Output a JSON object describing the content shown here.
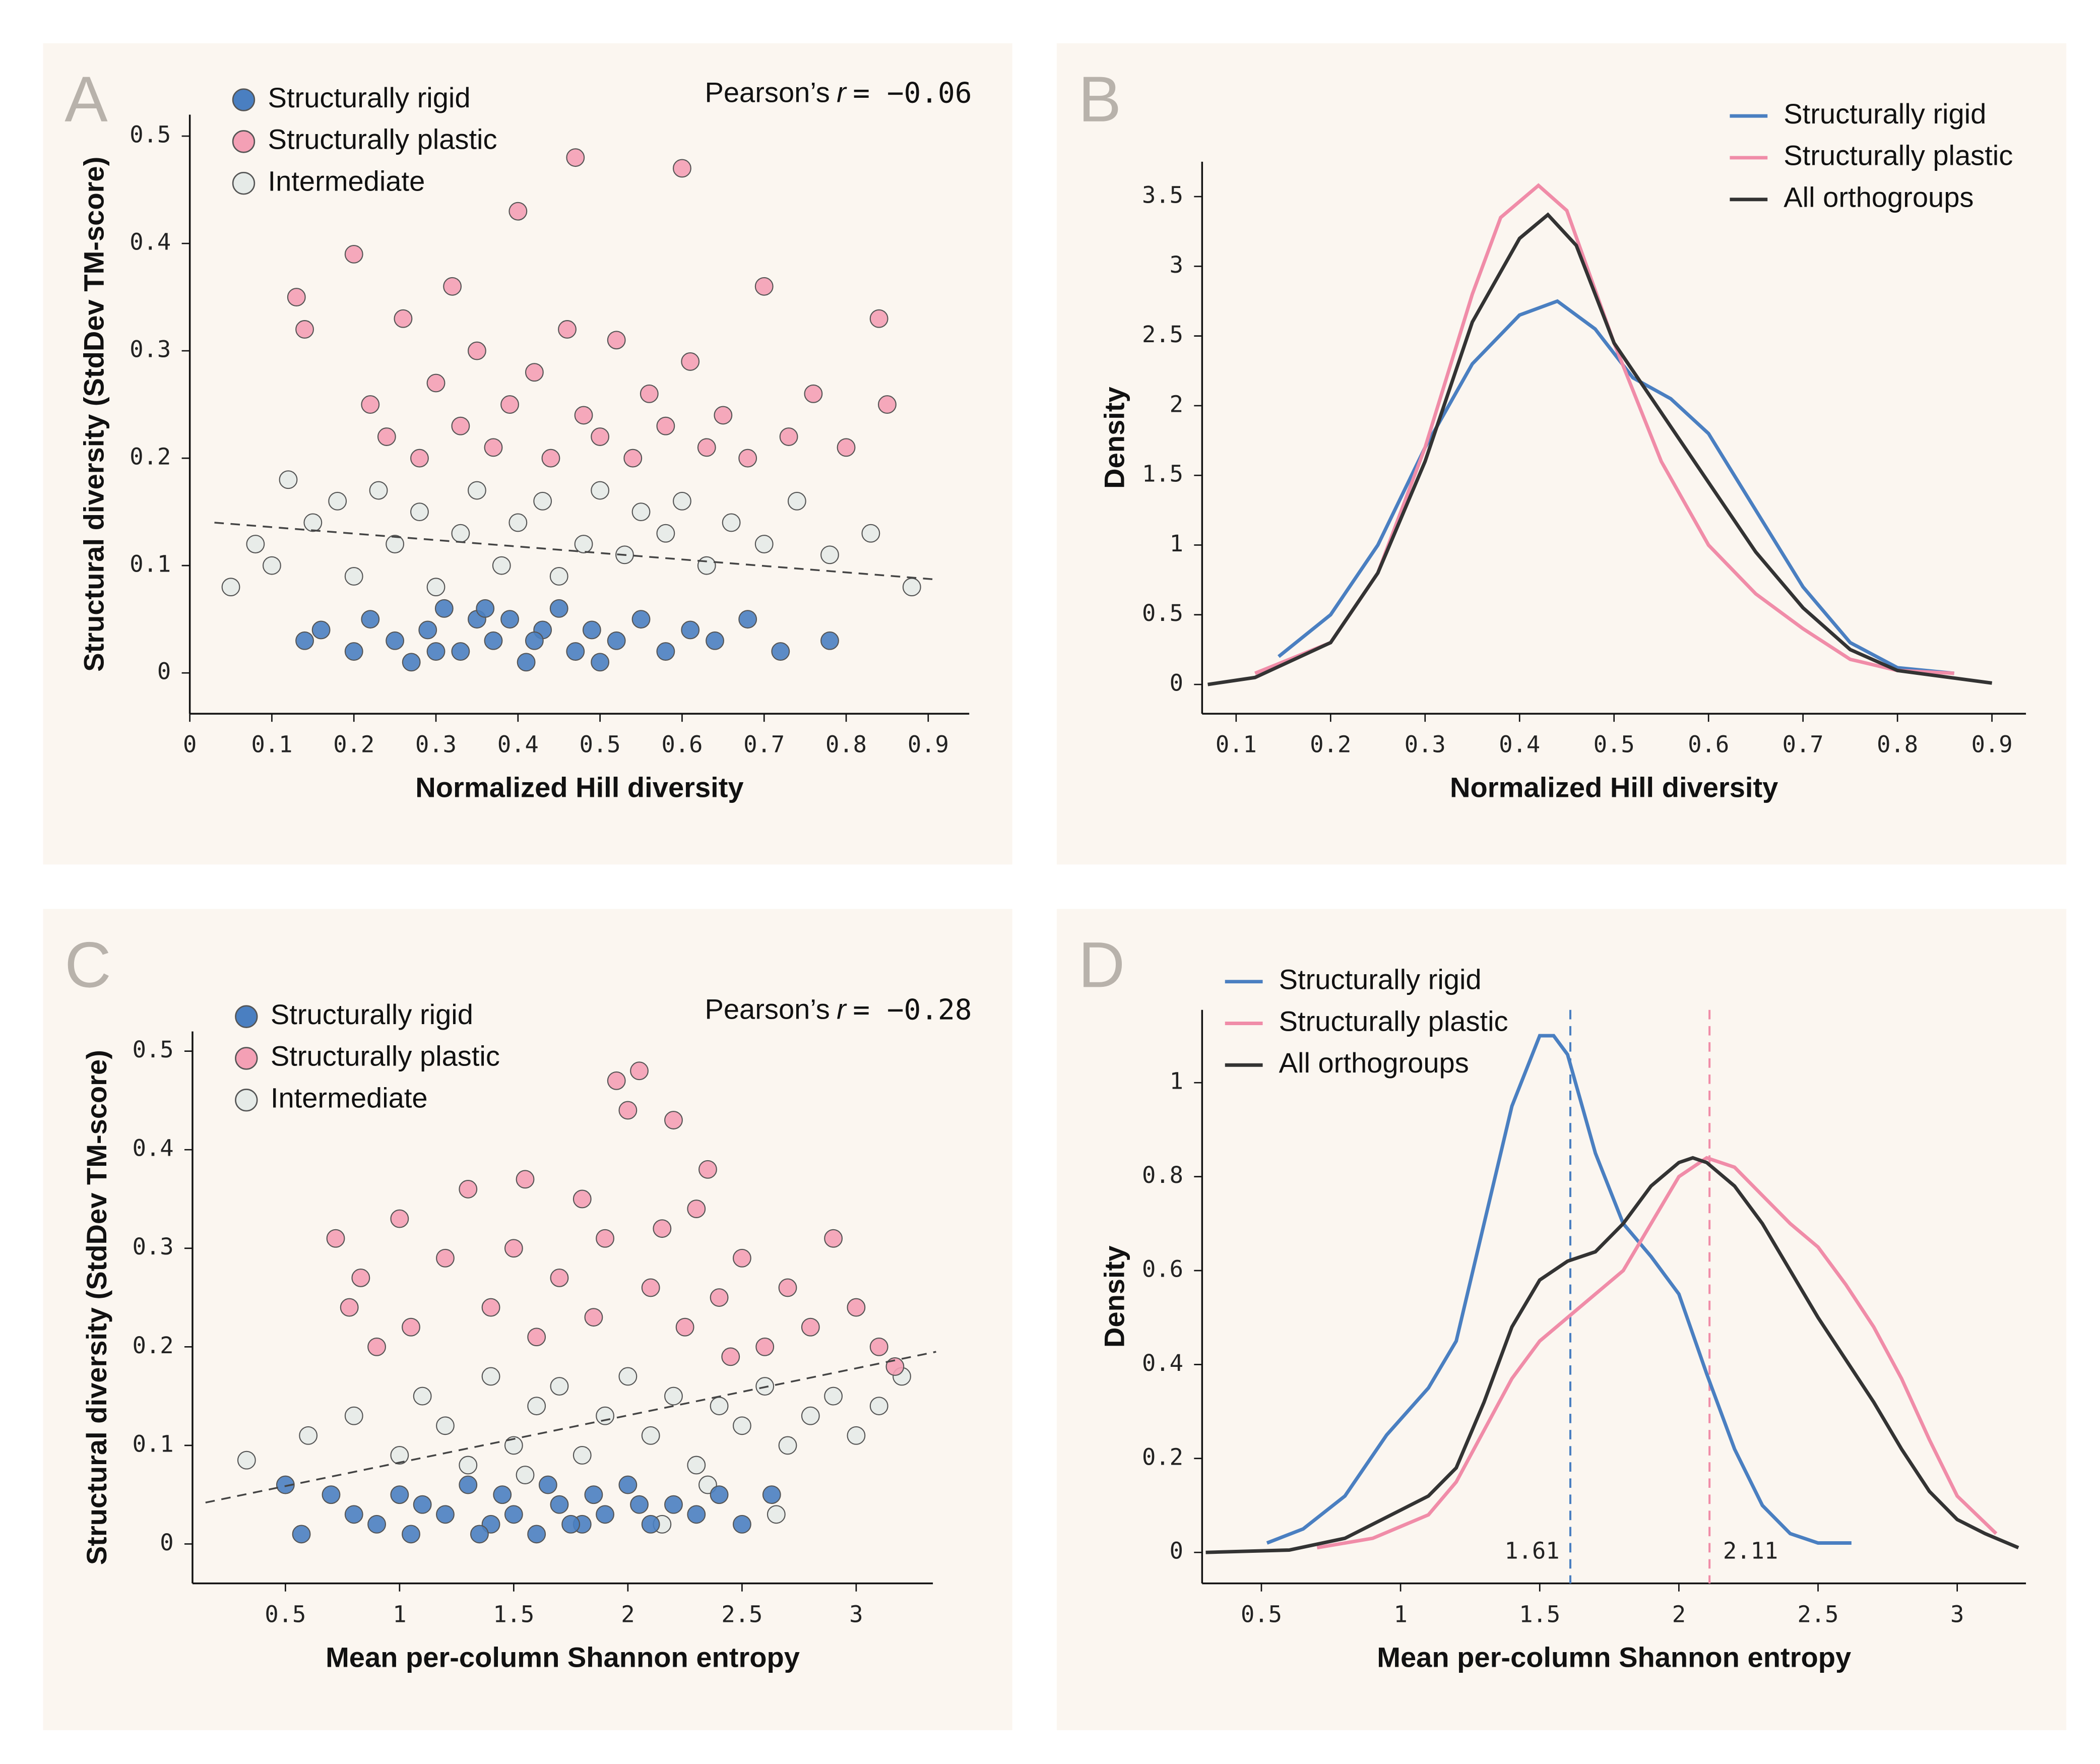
{
  "chart_data": [
    {
      "type": "scatter",
      "panel_label": "A",
      "annotation": [
        "Pearson’s",
        "r",
        "= −0.06"
      ],
      "xlabel": "Normalized Hill diversity",
      "ylabel": "Structural diversity (StdDev TM-score)",
      "xlim": [
        0,
        0.95
      ],
      "xticks": [
        0,
        0.1,
        0.2,
        0.3,
        0.4,
        0.5,
        0.6,
        0.7,
        0.8,
        0.9
      ],
      "ylim": [
        -0.038,
        0.52
      ],
      "yticks": [
        0,
        0.1,
        0.2,
        0.3,
        0.4,
        0.5
      ],
      "trendline": {
        "x": [
          0.03,
          0.91
        ],
        "y": [
          0.14,
          0.087
        ]
      },
      "series": [
        {
          "name": "Structurally rigid",
          "color": "#4a7fc1",
          "x": [
            0.14,
            0.16,
            0.2,
            0.22,
            0.25,
            0.27,
            0.29,
            0.31,
            0.33,
            0.35,
            0.37,
            0.39,
            0.41,
            0.43,
            0.45,
            0.47,
            0.49,
            0.52,
            0.55,
            0.58,
            0.61,
            0.64,
            0.68,
            0.72,
            0.78,
            0.3,
            0.36,
            0.42,
            0.5
          ],
          "y": [
            0.03,
            0.04,
            0.02,
            0.05,
            0.03,
            0.01,
            0.04,
            0.06,
            0.02,
            0.05,
            0.03,
            0.05,
            0.01,
            0.04,
            0.06,
            0.02,
            0.04,
            0.03,
            0.05,
            0.02,
            0.04,
            0.03,
            0.05,
            0.02,
            0.03,
            0.02,
            0.06,
            0.03,
            0.01
          ]
        },
        {
          "name": "Structurally plastic",
          "color": "#f4a0b5",
          "x": [
            0.13,
            0.14,
            0.2,
            0.22,
            0.24,
            0.26,
            0.28,
            0.3,
            0.32,
            0.33,
            0.35,
            0.37,
            0.39,
            0.4,
            0.42,
            0.44,
            0.46,
            0.47,
            0.48,
            0.5,
            0.52,
            0.54,
            0.56,
            0.58,
            0.6,
            0.61,
            0.63,
            0.65,
            0.68,
            0.7,
            0.73,
            0.76,
            0.8,
            0.84,
            0.85
          ],
          "y": [
            0.35,
            0.32,
            0.39,
            0.25,
            0.22,
            0.33,
            0.2,
            0.27,
            0.36,
            0.23,
            0.3,
            0.21,
            0.25,
            0.43,
            0.28,
            0.2,
            0.32,
            0.48,
            0.24,
            0.22,
            0.31,
            0.2,
            0.26,
            0.23,
            0.47,
            0.29,
            0.21,
            0.24,
            0.2,
            0.36,
            0.22,
            0.26,
            0.21,
            0.33,
            0.25
          ]
        },
        {
          "name": "Intermediate",
          "color": "#e6ebe8",
          "x": [
            0.05,
            0.08,
            0.1,
            0.12,
            0.15,
            0.18,
            0.2,
            0.23,
            0.25,
            0.28,
            0.3,
            0.33,
            0.35,
            0.38,
            0.4,
            0.43,
            0.45,
            0.48,
            0.5,
            0.53,
            0.55,
            0.58,
            0.6,
            0.63,
            0.66,
            0.7,
            0.74,
            0.78,
            0.83,
            0.88
          ],
          "y": [
            0.08,
            0.12,
            0.1,
            0.18,
            0.14,
            0.16,
            0.09,
            0.17,
            0.12,
            0.15,
            0.08,
            0.13,
            0.17,
            0.1,
            0.14,
            0.16,
            0.09,
            0.12,
            0.17,
            0.11,
            0.15,
            0.13,
            0.16,
            0.1,
            0.14,
            0.12,
            0.16,
            0.11,
            0.13,
            0.08
          ]
        }
      ]
    },
    {
      "type": "line",
      "panel_label": "B",
      "xlabel": "Normalized Hill diversity",
      "ylabel": "Density",
      "xlim": [
        0.064,
        0.936
      ],
      "xticks": [
        0.1,
        0.2,
        0.3,
        0.4,
        0.5,
        0.6,
        0.7,
        0.8,
        0.9
      ],
      "ylim": [
        -0.21,
        3.75
      ],
      "yticks": [
        0,
        0.5,
        1,
        1.5,
        2,
        2.5,
        3,
        3.5
      ],
      "series": [
        {
          "name": "Structurally rigid",
          "color": "#4a7fc1",
          "x": [
            0.145,
            0.2,
            0.25,
            0.3,
            0.35,
            0.4,
            0.44,
            0.48,
            0.52,
            0.56,
            0.6,
            0.65,
            0.7,
            0.75,
            0.8,
            0.86
          ],
          "y": [
            0.2,
            0.5,
            1.0,
            1.7,
            2.3,
            2.65,
            2.75,
            2.55,
            2.2,
            2.05,
            1.8,
            1.25,
            0.7,
            0.3,
            0.12,
            0.08
          ]
        },
        {
          "name": "Structurally plastic",
          "color": "#f08ca8",
          "x": [
            0.12,
            0.2,
            0.25,
            0.3,
            0.35,
            0.38,
            0.42,
            0.45,
            0.5,
            0.55,
            0.6,
            0.65,
            0.7,
            0.75,
            0.8,
            0.86
          ],
          "y": [
            0.08,
            0.3,
            0.8,
            1.7,
            2.8,
            3.35,
            3.58,
            3.4,
            2.45,
            1.6,
            1.0,
            0.65,
            0.4,
            0.18,
            0.1,
            0.08
          ]
        },
        {
          "name": "All orthogroups",
          "color": "#333333",
          "x": [
            0.07,
            0.12,
            0.2,
            0.25,
            0.3,
            0.35,
            0.4,
            0.43,
            0.46,
            0.5,
            0.55,
            0.6,
            0.65,
            0.7,
            0.75,
            0.8,
            0.9
          ],
          "y": [
            0.0,
            0.05,
            0.3,
            0.8,
            1.6,
            2.6,
            3.2,
            3.37,
            3.15,
            2.45,
            1.95,
            1.45,
            0.95,
            0.55,
            0.25,
            0.1,
            0.01
          ]
        }
      ]
    },
    {
      "type": "scatter",
      "panel_label": "C",
      "annotation": [
        "Pearson’s",
        "r",
        "= −0.28"
      ],
      "xlabel": "Mean per-column Shannon entropy",
      "ylabel": "Structural diversity (StdDev TM-score)",
      "xlim": [
        0.093,
        3.336
      ],
      "xticks": [
        0.5,
        1,
        1.5,
        2,
        2.5,
        3
      ],
      "ylim": [
        -0.04,
        0.52
      ],
      "yticks": [
        0,
        0.1,
        0.2,
        0.3,
        0.4,
        0.5
      ],
      "trendline": {
        "x": [
          0.15,
          3.35
        ],
        "y": [
          0.042,
          0.195
        ]
      },
      "series": [
        {
          "name": "Structurally rigid",
          "color": "#4a7fc1",
          "x": [
            0.5,
            0.57,
            0.7,
            0.8,
            0.9,
            1.0,
            1.05,
            1.1,
            1.2,
            1.3,
            1.4,
            1.45,
            1.5,
            1.6,
            1.65,
            1.7,
            1.8,
            1.85,
            1.9,
            2.0,
            2.1,
            2.2,
            2.3,
            2.4,
            2.5,
            2.63,
            1.35,
            1.75,
            2.05
          ],
          "y": [
            0.06,
            0.01,
            0.05,
            0.03,
            0.02,
            0.05,
            0.01,
            0.04,
            0.03,
            0.06,
            0.02,
            0.05,
            0.03,
            0.01,
            0.06,
            0.04,
            0.02,
            0.05,
            0.03,
            0.06,
            0.02,
            0.04,
            0.03,
            0.05,
            0.02,
            0.05,
            0.01,
            0.02,
            0.04
          ]
        },
        {
          "name": "Structurally plastic",
          "color": "#f4a0b5",
          "x": [
            0.72,
            0.78,
            0.83,
            0.9,
            1.0,
            1.05,
            1.2,
            1.3,
            1.4,
            1.5,
            1.6,
            1.7,
            1.8,
            1.85,
            1.9,
            1.95,
            2.0,
            2.05,
            2.1,
            2.2,
            2.25,
            2.3,
            2.35,
            2.4,
            2.5,
            2.6,
            2.7,
            2.8,
            2.9,
            3.0,
            3.1,
            3.17,
            1.55,
            2.15,
            2.45
          ],
          "y": [
            0.31,
            0.24,
            0.27,
            0.2,
            0.33,
            0.22,
            0.29,
            0.36,
            0.24,
            0.3,
            0.21,
            0.27,
            0.35,
            0.23,
            0.31,
            0.47,
            0.44,
            0.48,
            0.26,
            0.43,
            0.22,
            0.34,
            0.38,
            0.25,
            0.29,
            0.2,
            0.26,
            0.22,
            0.31,
            0.24,
            0.2,
            0.18,
            0.37,
            0.32,
            0.19
          ]
        },
        {
          "name": "Intermediate",
          "color": "#e6ebe8",
          "x": [
            0.33,
            0.6,
            0.8,
            1.0,
            1.1,
            1.2,
            1.3,
            1.4,
            1.5,
            1.6,
            1.7,
            1.8,
            1.9,
            2.0,
            2.1,
            2.2,
            2.3,
            2.4,
            2.5,
            2.6,
            2.7,
            2.8,
            2.9,
            3.0,
            3.1,
            3.2,
            2.15,
            2.65,
            1.55,
            2.35
          ],
          "y": [
            0.085,
            0.11,
            0.13,
            0.09,
            0.15,
            0.12,
            0.08,
            0.17,
            0.1,
            0.14,
            0.16,
            0.09,
            0.13,
            0.17,
            0.11,
            0.15,
            0.08,
            0.14,
            0.12,
            0.16,
            0.1,
            0.13,
            0.15,
            0.11,
            0.14,
            0.17,
            0.02,
            0.03,
            0.07,
            0.06
          ]
        }
      ]
    },
    {
      "type": "line",
      "panel_label": "D",
      "xlabel": "Mean per-column Shannon entropy",
      "ylabel": "Density",
      "xlim": [
        0.287,
        3.247
      ],
      "xticks": [
        0.5,
        1,
        1.5,
        2,
        2.5,
        3
      ],
      "ylim": [
        -0.066,
        1.155
      ],
      "yticks": [
        0,
        0.2,
        0.4,
        0.6,
        0.8,
        1
      ],
      "medians": [
        {
          "value": 1.61,
          "color": "#4a7fc1"
        },
        {
          "value": 2.11,
          "color": "#f08ca8"
        }
      ],
      "series": [
        {
          "name": "Structurally rigid",
          "color": "#4a7fc1",
          "x": [
            0.52,
            0.65,
            0.8,
            0.95,
            1.1,
            1.2,
            1.3,
            1.4,
            1.5,
            1.55,
            1.6,
            1.7,
            1.8,
            1.9,
            2.0,
            2.1,
            2.2,
            2.3,
            2.4,
            2.5,
            2.62
          ],
          "y": [
            0.02,
            0.05,
            0.12,
            0.25,
            0.35,
            0.45,
            0.7,
            0.95,
            1.1,
            1.1,
            1.06,
            0.85,
            0.7,
            0.63,
            0.55,
            0.38,
            0.22,
            0.1,
            0.04,
            0.02,
            0.02
          ]
        },
        {
          "name": "Structurally plastic",
          "color": "#f08ca8",
          "x": [
            0.7,
            0.9,
            1.1,
            1.2,
            1.3,
            1.4,
            1.5,
            1.6,
            1.7,
            1.8,
            1.9,
            2.0,
            2.1,
            2.2,
            2.3,
            2.4,
            2.5,
            2.6,
            2.7,
            2.8,
            2.9,
            3.0,
            3.14
          ],
          "y": [
            0.01,
            0.03,
            0.08,
            0.15,
            0.26,
            0.37,
            0.45,
            0.5,
            0.55,
            0.6,
            0.7,
            0.8,
            0.84,
            0.82,
            0.76,
            0.7,
            0.65,
            0.57,
            0.48,
            0.37,
            0.24,
            0.12,
            0.04
          ]
        },
        {
          "name": "All orthogroups",
          "color": "#333333",
          "x": [
            0.3,
            0.6,
            0.8,
            1.0,
            1.1,
            1.2,
            1.3,
            1.4,
            1.5,
            1.6,
            1.7,
            1.8,
            1.9,
            2.0,
            2.05,
            2.1,
            2.2,
            2.3,
            2.4,
            2.5,
            2.6,
            2.7,
            2.8,
            2.9,
            3.0,
            3.1,
            3.22
          ],
          "y": [
            0,
            0.005,
            0.03,
            0.09,
            0.12,
            0.18,
            0.32,
            0.48,
            0.58,
            0.62,
            0.64,
            0.7,
            0.78,
            0.83,
            0.84,
            0.83,
            0.78,
            0.7,
            0.6,
            0.5,
            0.41,
            0.32,
            0.22,
            0.13,
            0.07,
            0.04,
            0.01
          ]
        }
      ]
    }
  ]
}
